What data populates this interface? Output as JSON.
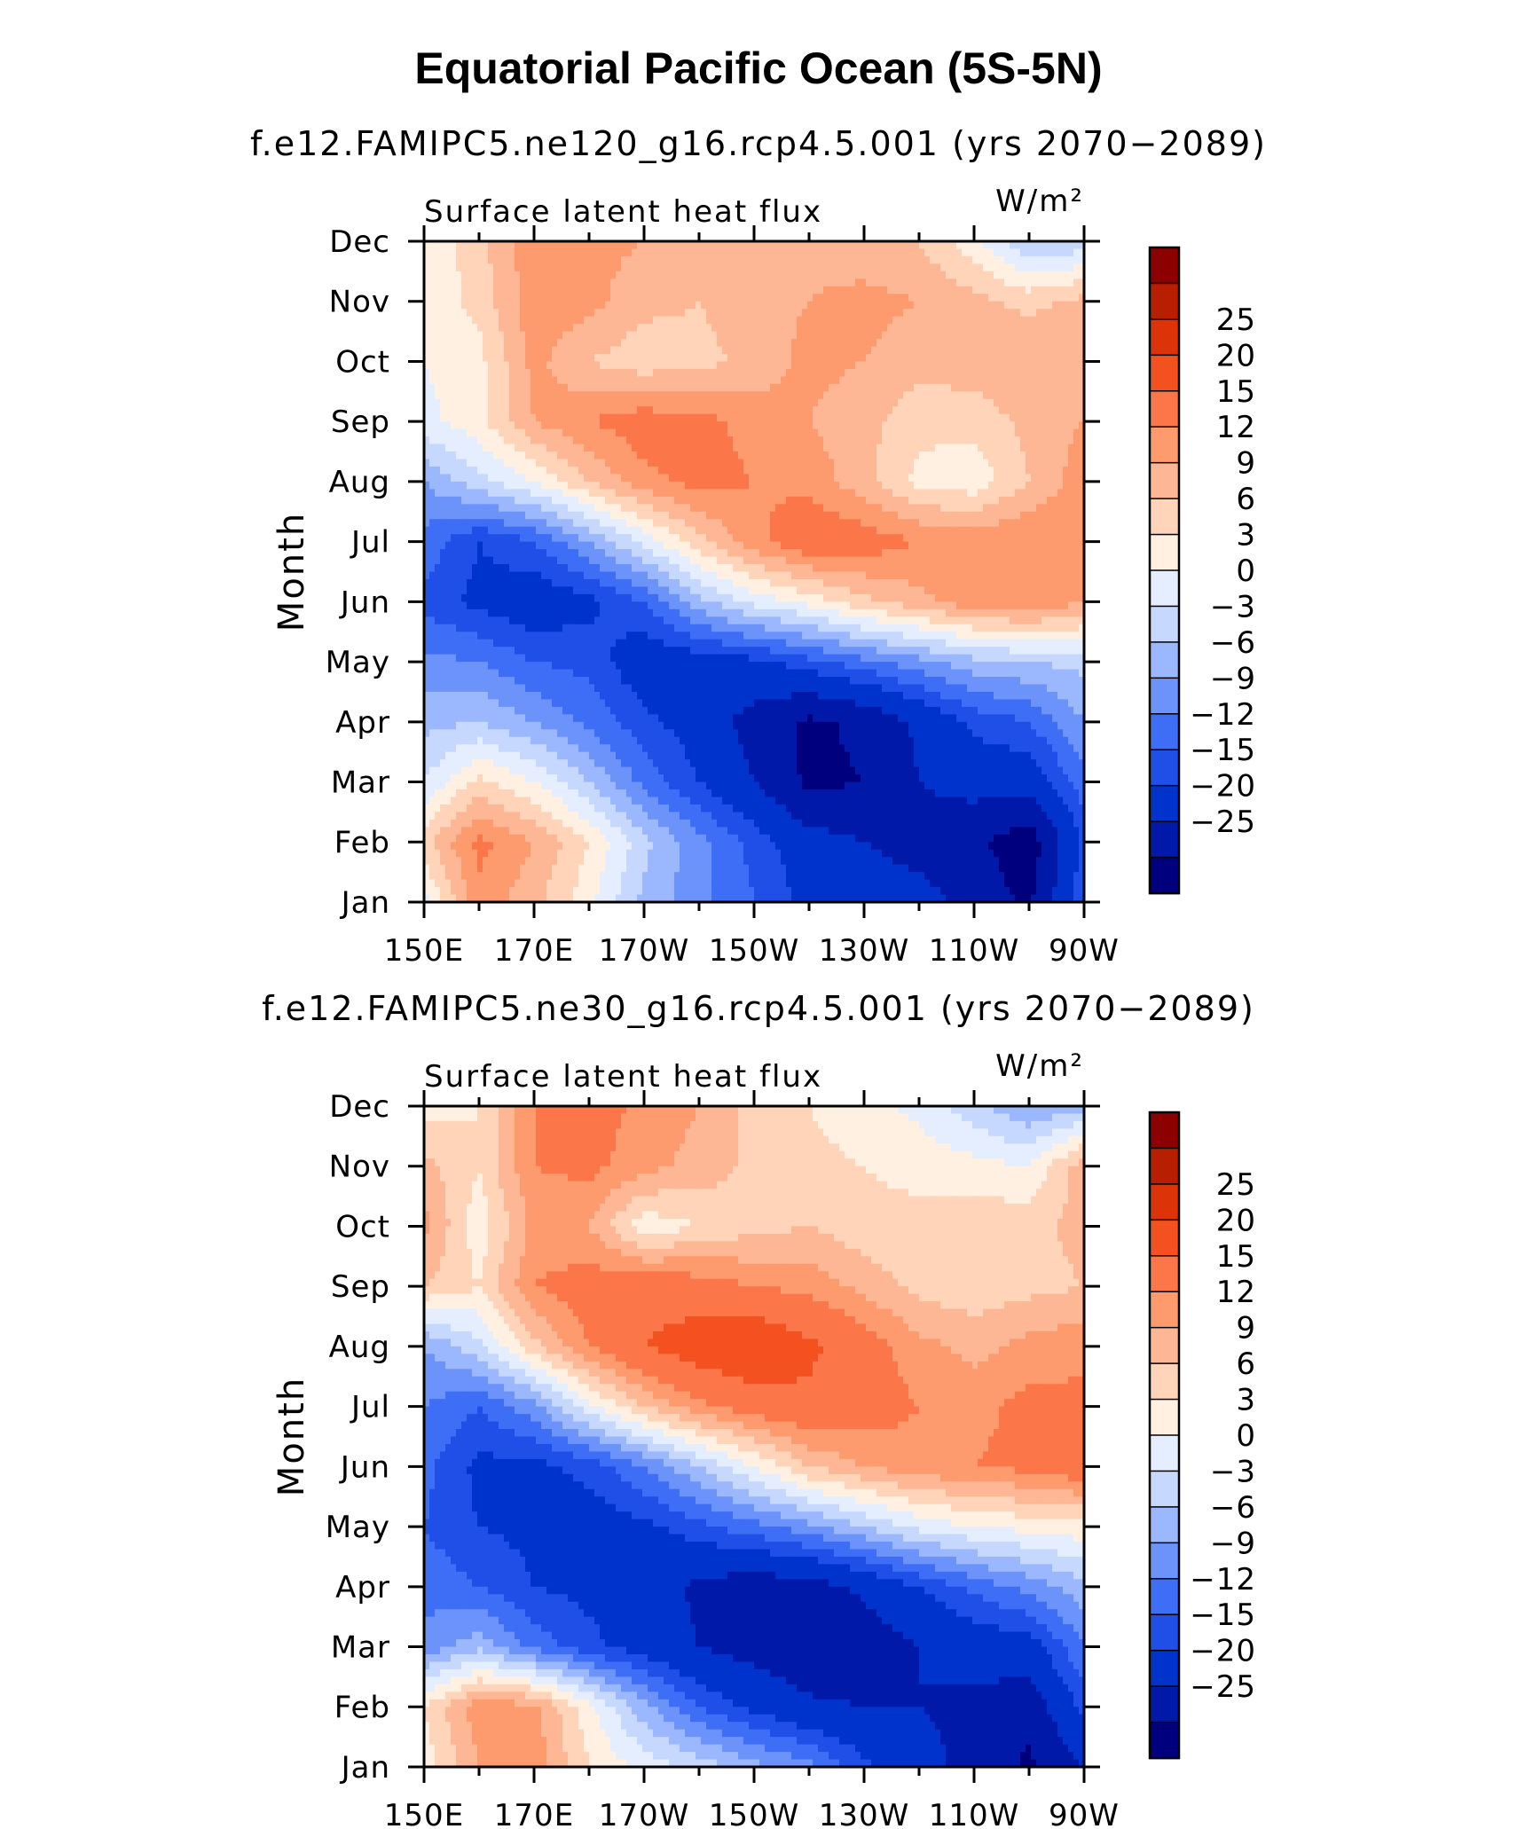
{
  "title": "Equatorial Pacific Ocean (5S-5N)",
  "colors": [
    "#00007f",
    "#0019a8",
    "#0033cc",
    "#1f4fe6",
    "#3d6ef5",
    "#6b93fa",
    "#9bb7fd",
    "#c7d8fe",
    "#e4eeff",
    "#fff0e1",
    "#ffd4b8",
    "#feb794",
    "#fd9a6e",
    "#fb774a",
    "#f3511f",
    "#dc3408",
    "#b81f00",
    "#8c0000"
  ],
  "chart_data": [
    {
      "type": "heatmap",
      "title": "f.e12.FAMIPC5.ne120_g16.rcp4.5.001 (yrs 2070−2089)",
      "variable": "Surface latent heat flux",
      "units": "W/m²",
      "ylabel": "Month",
      "xticks": [
        "150E",
        "170E",
        "170W",
        "150W",
        "130W",
        "110W",
        "90W"
      ],
      "yticks": [
        "Jan",
        "Feb",
        "Mar",
        "Apr",
        "May",
        "Jun",
        "Jul",
        "Aug",
        "Sep",
        "Oct",
        "Nov",
        "Dec"
      ],
      "colorbar_labels": [
        "25",
        "20",
        "15",
        "12",
        "9",
        "6",
        "3",
        "0",
        "−3",
        "−6",
        "−9",
        "−12",
        "−15",
        "−20",
        "−25"
      ],
      "levels": [
        -30,
        -25,
        -20,
        -15,
        -12,
        -9,
        -6,
        -3,
        0,
        3,
        6,
        9,
        12,
        15,
        20,
        25,
        30
      ],
      "lon_values": [
        150,
        160,
        170,
        180,
        190,
        200,
        210,
        220,
        230,
        240,
        250,
        260,
        270
      ],
      "month_values": [
        "Jan",
        "Feb",
        "Mar",
        "Apr",
        "May",
        "Jun",
        "Jul",
        "Aug",
        "Sep",
        "Oct",
        "Nov",
        "Dec"
      ],
      "grid": [
        [
          2,
          14,
          10,
          4,
          -4,
          -8,
          -12,
          -16,
          -17,
          -18,
          -22,
          -26,
          -12
        ],
        [
          8,
          16,
          12,
          6,
          -2,
          -8,
          -13,
          -18,
          -20,
          -22,
          -24,
          -28,
          -14
        ],
        [
          0,
          7,
          3,
          -3,
          -10,
          -15,
          -20,
          -26,
          -25,
          -20,
          -18,
          -18,
          -10
        ],
        [
          -4,
          -3,
          -6,
          -10,
          -14,
          -17,
          -22,
          -26,
          -24,
          -19,
          -14,
          -12,
          -6
        ],
        [
          -8,
          -9,
          -12,
          -13,
          -18,
          -17,
          -16,
          -13,
          -10,
          -7,
          -4,
          -3,
          -2
        ],
        [
          -13,
          -16,
          -18,
          -16,
          -12,
          -4,
          1,
          4,
          8,
          11,
          14,
          15,
          12
        ],
        [
          -10,
          -15,
          -12,
          -6,
          1,
          8,
          14,
          18,
          17,
          15,
          14,
          15,
          14
        ],
        [
          -6,
          -1,
          3,
          9,
          14,
          16,
          15,
          14,
          10,
          5,
          4,
          9,
          14
        ],
        [
          2,
          5,
          12,
          15,
          17,
          16,
          14,
          12,
          10,
          7,
          7,
          10,
          12
        ],
        [
          3,
          5,
          13,
          9,
          7,
          8,
          10,
          13,
          12,
          10,
          11,
          12,
          12
        ],
        [
          4,
          7,
          14,
          13,
          10,
          9,
          11,
          12,
          13,
          12,
          10,
          8,
          10
        ],
        [
          3,
          8,
          14,
          13,
          12,
          11,
          12,
          11,
          10,
          9,
          4,
          -3,
          -2
        ]
      ]
    },
    {
      "type": "heatmap",
      "title": "f.e12.FAMIPC5.ne30_g16.rcp4.5.001 (yrs 2070−2089)",
      "variable": "Surface latent heat flux",
      "units": "W/m²",
      "ylabel": "Month",
      "xticks": [
        "150E",
        "170E",
        "170W",
        "150W",
        "130W",
        "110W",
        "90W"
      ],
      "yticks": [
        "Jan",
        "Feb",
        "Mar",
        "Apr",
        "May",
        "Jun",
        "Jul",
        "Aug",
        "Sep",
        "Oct",
        "Nov",
        "Dec"
      ],
      "colorbar_labels": [
        "25",
        "20",
        "15",
        "12",
        "9",
        "6",
        "3",
        "0",
        "−3",
        "−6",
        "−9",
        "−12",
        "−15",
        "−20",
        "−25"
      ],
      "levels": [
        -30,
        -25,
        -20,
        -15,
        -12,
        -9,
        -6,
        -3,
        0,
        3,
        6,
        9,
        12,
        15,
        20,
        25,
        30
      ],
      "lon_values": [
        150,
        160,
        170,
        180,
        190,
        200,
        210,
        220,
        230,
        240,
        250,
        260,
        270
      ],
      "month_values": [
        "Jan",
        "Feb",
        "Mar",
        "Apr",
        "May",
        "Jun",
        "Jul",
        "Aug",
        "Sep",
        "Oct",
        "Nov",
        "Dec"
      ],
      "grid": [
        [
          4,
          12,
          14,
          6,
          2,
          -1,
          -5,
          -8,
          -14,
          -18,
          -22,
          -26,
          -20
        ],
        [
          6,
          14,
          13,
          4,
          -5,
          -12,
          -16,
          -19,
          -20,
          -20,
          -21,
          -23,
          -14
        ],
        [
          -8,
          -4,
          -10,
          -14,
          -17,
          -20,
          -22,
          -24,
          -23,
          -20,
          -18,
          -17,
          -9
        ],
        [
          -10,
          -12,
          -15,
          -16,
          -17,
          -21,
          -23,
          -22,
          -19,
          -15,
          -11,
          -8,
          -4
        ],
        [
          -12,
          -15,
          -16,
          -17,
          -16,
          -13,
          -10,
          -7,
          -3,
          1,
          3,
          4,
          5
        ],
        [
          -11,
          -16,
          -16,
          -14,
          -9,
          -3,
          3,
          9,
          12,
          14,
          15,
          16,
          18
        ],
        [
          -9,
          -12,
          -7,
          2,
          9,
          14,
          17,
          19,
          17,
          15,
          14,
          16,
          16
        ],
        [
          -6,
          -1,
          8,
          15,
          20,
          23,
          25,
          21,
          17,
          13,
          11,
          13,
          14
        ],
        [
          9,
          6,
          15,
          17,
          18,
          17,
          15,
          14,
          11,
          8,
          7,
          8,
          9
        ],
        [
          13,
          4,
          13,
          12,
          4,
          6,
          8,
          9,
          7,
          7,
          8,
          8,
          10
        ],
        [
          10,
          6,
          15,
          16,
          13,
          11,
          8,
          7,
          6,
          5,
          4,
          3,
          11
        ],
        [
          5,
          6,
          15,
          17,
          14,
          12,
          8,
          6,
          4,
          2,
          -2,
          -6,
          -4
        ]
      ]
    }
  ]
}
